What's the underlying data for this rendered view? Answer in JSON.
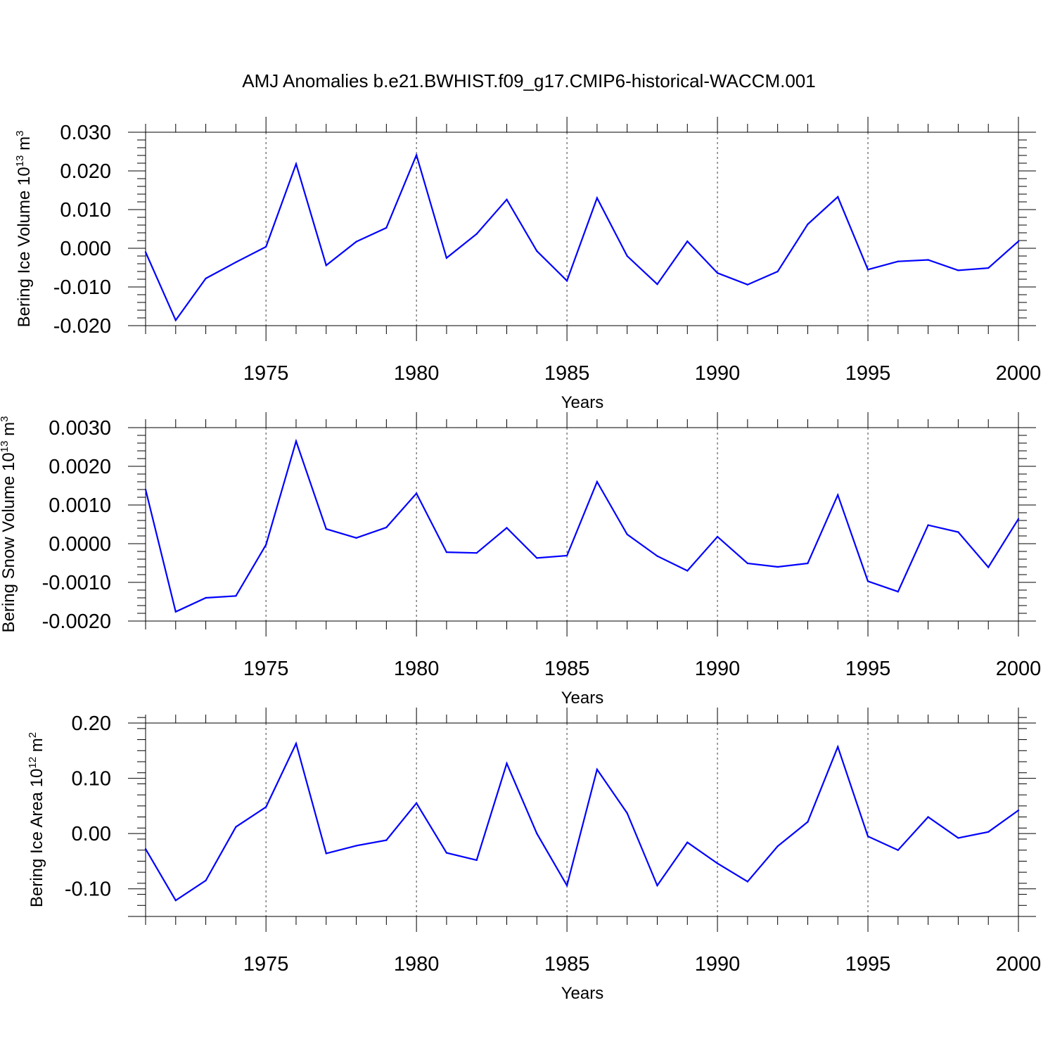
{
  "chart_data": [
    {
      "type": "line",
      "title": "AMJ Anomalies b.e21.BWHIST.f09_g17.CMIP6-historical-WACCM.001",
      "ylabel_base": "Bering Ice Volume 10",
      "ylabel_exp": "13",
      "ylabel_unit": " m",
      "ylabel_unit_exp": "3",
      "xlabel": "Years",
      "xlim": [
        1971,
        2000
      ],
      "ylim": [
        -0.02,
        0.03
      ],
      "yticks": [
        -0.02,
        -0.01,
        0.0,
        0.01,
        0.02,
        0.03
      ],
      "ytick_labels": [
        "-0.020",
        "-0.010",
        "0.000",
        "0.010",
        "0.020",
        "0.030"
      ],
      "xticks": [
        1975,
        1980,
        1985,
        1990,
        1995,
        2000
      ],
      "xtick_labels": [
        "1975",
        "1980",
        "1985",
        "1990",
        "1995",
        "2000"
      ],
      "series": [
        {
          "name": "Bering Ice Volume",
          "color": "#0000ff",
          "x": [
            1971,
            1972,
            1973,
            1974,
            1975,
            1976,
            1977,
            1978,
            1979,
            1980,
            1981,
            1982,
            1983,
            1984,
            1985,
            1986,
            1987,
            1988,
            1989,
            1990,
            1991,
            1992,
            1993,
            1994,
            1995,
            1996,
            1997,
            1998,
            1999,
            2000
          ],
          "values": [
            -0.001,
            -0.0186,
            -0.0078,
            -0.0036,
            0.0004,
            0.0218,
            -0.0044,
            0.0017,
            0.0053,
            0.0241,
            -0.0025,
            0.0037,
            0.0126,
            -0.0007,
            -0.0084,
            0.013,
            -0.002,
            -0.0093,
            0.0018,
            -0.0064,
            -0.0094,
            -0.006,
            0.0062,
            0.0133,
            -0.0055,
            -0.0034,
            -0.003,
            -0.0057,
            -0.0051,
            0.0018
          ]
        }
      ]
    },
    {
      "type": "line",
      "ylabel_base": "Bering Snow Volume 10",
      "ylabel_exp": "13",
      "ylabel_unit": " m",
      "ylabel_unit_exp": "3",
      "xlabel": "Years",
      "xlim": [
        1971,
        2000
      ],
      "ylim": [
        -0.002,
        0.003
      ],
      "yticks": [
        -0.002,
        -0.001,
        0.0,
        0.001,
        0.002,
        0.003
      ],
      "ytick_labels": [
        "-0.0020",
        "-0.0010",
        "0.0000",
        "0.0010",
        "0.0020",
        "0.0030"
      ],
      "xticks": [
        1975,
        1980,
        1985,
        1990,
        1995,
        2000
      ],
      "xtick_labels": [
        "1975",
        "1980",
        "1985",
        "1990",
        "1995",
        "2000"
      ],
      "series": [
        {
          "name": "Bering Snow Volume",
          "color": "#0000ff",
          "x": [
            1971,
            1972,
            1973,
            1974,
            1975,
            1976,
            1977,
            1978,
            1979,
            1980,
            1981,
            1982,
            1983,
            1984,
            1985,
            1986,
            1987,
            1988,
            1989,
            1990,
            1991,
            1992,
            1993,
            1994,
            1995,
            1996,
            1997,
            1998,
            1999,
            2000
          ],
          "values": [
            0.0014,
            -0.00176,
            -0.0014,
            -0.00135,
            -3e-05,
            0.00265,
            0.00038,
            0.00015,
            0.00042,
            0.0013,
            -0.00022,
            -0.00024,
            0.00041,
            -0.00037,
            -0.00031,
            0.0016,
            0.00024,
            -0.00032,
            -0.0007,
            0.00018,
            -0.00051,
            -0.0006,
            -0.00051,
            0.00126,
            -0.00097,
            -0.00124,
            0.00048,
            0.0003,
            -0.00061,
            0.00064
          ]
        }
      ]
    },
    {
      "type": "line",
      "ylabel_base": "Bering Ice Area 10",
      "ylabel_exp": "12",
      "ylabel_unit": " m",
      "ylabel_unit_exp": "2",
      "xlabel": "Years",
      "xlim": [
        1971,
        2000
      ],
      "ylim": [
        -0.15,
        0.2
      ],
      "yticks": [
        -0.1,
        0.0,
        0.1,
        0.2
      ],
      "ytick_labels": [
        "-0.10",
        "0.00",
        "0.10",
        "0.20"
      ],
      "xticks": [
        1975,
        1980,
        1985,
        1990,
        1995,
        2000
      ],
      "xtick_labels": [
        "1975",
        "1980",
        "1985",
        "1990",
        "1995",
        "2000"
      ],
      "series": [
        {
          "name": "Bering Ice Area",
          "color": "#0000ff",
          "x": [
            1971,
            1972,
            1973,
            1974,
            1975,
            1976,
            1977,
            1978,
            1979,
            1980,
            1981,
            1982,
            1983,
            1984,
            1985,
            1986,
            1987,
            1988,
            1989,
            1990,
            1991,
            1992,
            1993,
            1994,
            1995,
            1996,
            1997,
            1998,
            1999,
            2000
          ],
          "values": [
            -0.028,
            -0.121,
            -0.085,
            0.012,
            0.048,
            0.163,
            -0.036,
            -0.022,
            -0.012,
            0.055,
            -0.035,
            -0.048,
            0.127,
            0.0,
            -0.094,
            0.116,
            0.037,
            -0.094,
            -0.016,
            -0.054,
            -0.087,
            -0.023,
            0.021,
            0.157,
            -0.005,
            -0.03,
            0.03,
            -0.008,
            0.003,
            0.042
          ]
        }
      ]
    }
  ]
}
